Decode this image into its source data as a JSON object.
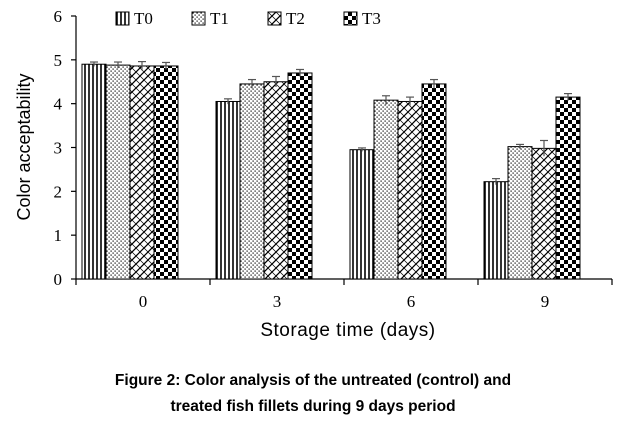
{
  "chart_data": {
    "type": "bar",
    "xlabel": "Storage time (days)",
    "ylabel": "Color acceptability",
    "ylim": [
      0,
      6
    ],
    "yticks": [
      "0",
      "1",
      "2",
      "3",
      "4",
      "5",
      "6"
    ],
    "categories": [
      "0",
      "3",
      "6",
      "9"
    ],
    "legend_position": "top",
    "grid": false,
    "series": [
      {
        "name": "T0",
        "pattern": "vertical-lines",
        "values": [
          4.9,
          4.05,
          2.95,
          2.22
        ],
        "errors": [
          0.05,
          0.06,
          0.04,
          0.07
        ]
      },
      {
        "name": "T1",
        "pattern": "dots",
        "values": [
          4.88,
          4.45,
          4.08,
          3.02
        ],
        "errors": [
          0.07,
          0.1,
          0.1,
          0.05
        ]
      },
      {
        "name": "T2",
        "pattern": "diagonal-hatch",
        "values": [
          4.86,
          4.5,
          4.05,
          2.98
        ],
        "errors": [
          0.1,
          0.12,
          0.1,
          0.18
        ]
      },
      {
        "name": "T3",
        "pattern": "checker",
        "values": [
          4.86,
          4.7,
          4.45,
          4.15
        ],
        "errors": [
          0.08,
          0.08,
          0.1,
          0.08
        ]
      }
    ]
  },
  "caption": {
    "line1": "Figure 2: Color analysis of the untreated (control) and",
    "line2": "treated fish fillets during 9 days period"
  }
}
